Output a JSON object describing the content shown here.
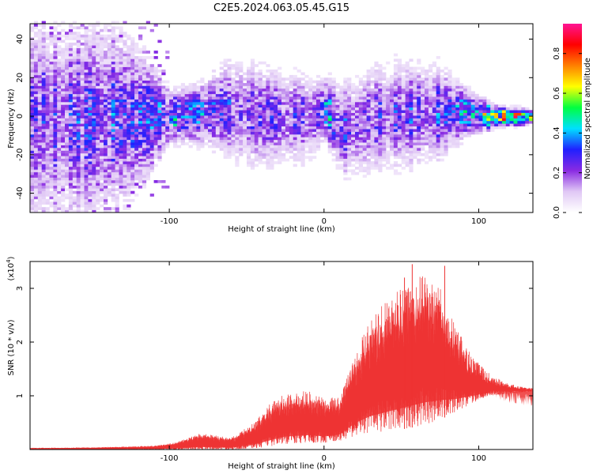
{
  "figure": {
    "title": "C2E5.2024.063.05.45.G15"
  },
  "chart_data": [
    {
      "type": "heatmap",
      "xlabel": "Height of straight line (km)",
      "ylabel": "Frequency (Hz)",
      "xlim": [
        -190,
        135
      ],
      "ylim": [
        -50,
        48
      ],
      "xticks": [
        -100,
        0,
        100
      ],
      "yticks": [
        -40,
        -20,
        0,
        20,
        40
      ],
      "colorbar": {
        "label": "Normalized spectral amplitude",
        "range": [
          0,
          0.95
        ],
        "ticks": [
          "0.0",
          "0.2",
          "0.4",
          "0.6",
          "0.8"
        ],
        "tick_values": [
          0.0,
          0.2,
          0.4,
          0.6,
          0.8
        ],
        "colormap": [
          "#ffffff",
          "#e0c8f5",
          "#8a2be2",
          "#2020ff",
          "#00e0ff",
          "#00ff40",
          "#ffff00",
          "#ff8000",
          "#ff0000",
          "#ff1493"
        ]
      },
      "ridge": {
        "x": [
          -190,
          -160,
          -130,
          -100,
          -80,
          -65,
          -50,
          -30,
          -10,
          0,
          10,
          30,
          50,
          70,
          90,
          110,
          135
        ],
        "center_hz": [
          -3,
          -3,
          -2,
          -1,
          1,
          3,
          0,
          -1,
          -2,
          3,
          -8,
          -2,
          0,
          1,
          1,
          -1,
          -1
        ],
        "spread_hz": [
          30,
          30,
          25,
          8,
          9,
          14,
          16,
          14,
          13,
          9,
          14,
          16,
          16,
          15,
          7,
          3,
          2
        ],
        "peak_amplitude": [
          0.3,
          0.3,
          0.35,
          0.42,
          0.45,
          0.35,
          0.3,
          0.3,
          0.3,
          0.5,
          0.3,
          0.3,
          0.3,
          0.3,
          0.45,
          0.8,
          0.95
        ]
      }
    },
    {
      "type": "line",
      "xlabel": "Height of straight line (km)",
      "ylabel": "SNR (10 * v/v)",
      "y_multiplier_label": "(x10",
      "y_multiplier_exp": "4",
      "y_multiplier_close": ")",
      "xlim": [
        -190,
        135
      ],
      "ylim": [
        0,
        3.5
      ],
      "xticks": [
        -100,
        0,
        100
      ],
      "yticks": [
        1,
        2,
        3
      ],
      "color": "#ee3333",
      "envelope": {
        "x": [
          -190,
          -150,
          -110,
          -95,
          -80,
          -60,
          -45,
          -35,
          -25,
          -10,
          0,
          10,
          20,
          30,
          45,
          55,
          65,
          75,
          85,
          95,
          105,
          115,
          125,
          135
        ],
        "upper": [
          0.03,
          0.04,
          0.07,
          0.14,
          0.3,
          0.22,
          0.5,
          0.85,
          1.05,
          1.1,
          0.95,
          1.0,
          1.85,
          2.45,
          2.9,
          3.1,
          3.3,
          3.0,
          2.3,
          1.8,
          1.45,
          1.28,
          1.18,
          1.14
        ],
        "lower": [
          0.0,
          0.0,
          0.0,
          0.0,
          0.0,
          0.0,
          0.02,
          0.05,
          0.1,
          0.12,
          0.12,
          0.15,
          0.25,
          0.3,
          0.35,
          0.4,
          0.45,
          0.55,
          0.7,
          0.85,
          0.98,
          1.02,
          1.06,
          1.08
        ]
      },
      "peaks": [
        {
          "x": 57,
          "y": 3.45
        },
        {
          "x": 78,
          "y": 3.42
        },
        {
          "x": 52,
          "y": 3.2
        }
      ]
    }
  ]
}
